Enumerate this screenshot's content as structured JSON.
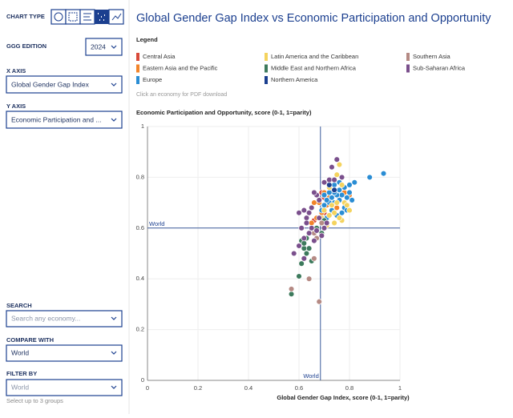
{
  "sidebar": {
    "chart_type_label": "CHART TYPE",
    "edition_label": "GGG EDITION",
    "edition": "2024",
    "x_axis_label": "X AXIS",
    "x_axis": "Global Gender Gap Index",
    "y_axis_label": "Y AXIS",
    "y_axis": "Economic Participation and ...",
    "search_label": "SEARCH",
    "search_placeholder": "Search any economy...",
    "compare_label": "COMPARE WITH",
    "compare": "World",
    "filter_label": "FILTER BY",
    "filter": "World",
    "filter_hint": "Select up to 3 groups"
  },
  "chart_data": {
    "type": "scatter",
    "title": "Global Gender Gap Index vs Economic Participation and Opportunity",
    "legend_title": "Legend",
    "note": "Click an economy for PDF download",
    "subtitle": "Economic Participation and Opportunity, score (0-1, 1=parity)",
    "xlabel": "Global Gender Gap Index, score (0-1, 1=parity)",
    "xlim": [
      0,
      1
    ],
    "ylim": [
      0,
      1
    ],
    "xticks": [
      0,
      0.2,
      0.4,
      0.6,
      0.8,
      1
    ],
    "yticks": [
      0,
      0.2,
      0.4,
      0.6,
      0.8,
      1
    ],
    "grid": true,
    "reference": {
      "label": "World",
      "x": 0.685,
      "y": 0.6
    },
    "series": [
      {
        "name": "Central Asia",
        "color": "#d84a3a",
        "x": [
          0.7,
          0.69,
          0.72,
          0.66,
          0.7
        ],
        "values": [
          0.72,
          0.74,
          0.7,
          0.63,
          0.66
        ]
      },
      {
        "name": "Eastern Asia and the Pacific",
        "color": "#f2842a",
        "x": [
          0.78,
          0.76,
          0.74,
          0.72,
          0.7,
          0.68,
          0.66,
          0.64,
          0.73,
          0.75,
          0.71,
          0.69,
          0.67,
          0.65,
          0.8
        ],
        "values": [
          0.74,
          0.72,
          0.7,
          0.72,
          0.74,
          0.7,
          0.7,
          0.66,
          0.75,
          0.68,
          0.69,
          0.66,
          0.64,
          0.62,
          0.73
        ]
      },
      {
        "name": "Europe",
        "color": "#2a8dd4",
        "x": [
          0.935,
          0.88,
          0.82,
          0.8,
          0.79,
          0.78,
          0.77,
          0.76,
          0.76,
          0.75,
          0.74,
          0.74,
          0.73,
          0.72,
          0.72,
          0.71,
          0.7,
          0.7,
          0.69,
          0.78,
          0.77,
          0.75,
          0.8,
          0.81,
          0.76,
          0.74,
          0.73,
          0.71,
          0.79
        ],
        "values": [
          0.815,
          0.8,
          0.78,
          0.77,
          0.72,
          0.76,
          0.73,
          0.75,
          0.71,
          0.73,
          0.74,
          0.7,
          0.72,
          0.7,
          0.74,
          0.71,
          0.69,
          0.73,
          0.67,
          0.68,
          0.66,
          0.65,
          0.74,
          0.71,
          0.78,
          0.77,
          0.67,
          0.64,
          0.67
        ]
      },
      {
        "name": "Latin America and the Caribbean",
        "color": "#f4d35e",
        "x": [
          0.76,
          0.75,
          0.77,
          0.78,
          0.8,
          0.77,
          0.74,
          0.72,
          0.73,
          0.7,
          0.74,
          0.71,
          0.76,
          0.79,
          0.72,
          0.69,
          0.75
        ],
        "values": [
          0.85,
          0.81,
          0.77,
          0.7,
          0.67,
          0.63,
          0.62,
          0.65,
          0.69,
          0.67,
          0.66,
          0.61,
          0.64,
          0.69,
          0.76,
          0.64,
          0.7
        ]
      },
      {
        "name": "Middle East and Northern Africa",
        "color": "#3d7a5c",
        "x": [
          0.57,
          0.6,
          0.61,
          0.62,
          0.61,
          0.62,
          0.63,
          0.64,
          0.65,
          0.66,
          0.69,
          0.67,
          0.7,
          0.63
        ],
        "values": [
          0.34,
          0.41,
          0.46,
          0.52,
          0.55,
          0.54,
          0.56,
          0.52,
          0.47,
          0.55,
          0.58,
          0.6,
          0.63,
          0.5
        ]
      },
      {
        "name": "Northern America",
        "color": "#1b3f8f",
        "x": [
          0.74,
          0.72
        ],
        "values": [
          0.75,
          0.77
        ]
      },
      {
        "name": "Southern Asia",
        "color": "#b58a84",
        "x": [
          0.57,
          0.64,
          0.68,
          0.66,
          0.69,
          0.66,
          0.67
        ],
        "values": [
          0.36,
          0.4,
          0.31,
          0.48,
          0.62,
          0.58,
          0.56
        ]
      },
      {
        "name": "Sub-Saharan Africa",
        "color": "#7a4f8c",
        "x": [
          0.75,
          0.73,
          0.72,
          0.7,
          0.68,
          0.67,
          0.66,
          0.65,
          0.64,
          0.6,
          0.62,
          0.63,
          0.65,
          0.64,
          0.62,
          0.6,
          0.58,
          0.62,
          0.66,
          0.67,
          0.69,
          0.71,
          0.68,
          0.7,
          0.74,
          0.77,
          0.63,
          0.61
        ],
        "values": [
          0.87,
          0.84,
          0.79,
          0.78,
          0.71,
          0.73,
          0.74,
          0.68,
          0.66,
          0.66,
          0.67,
          0.64,
          0.6,
          0.58,
          0.56,
          0.53,
          0.5,
          0.48,
          0.55,
          0.59,
          0.57,
          0.62,
          0.64,
          0.6,
          0.79,
          0.8,
          0.62,
          0.6
        ]
      }
    ]
  }
}
